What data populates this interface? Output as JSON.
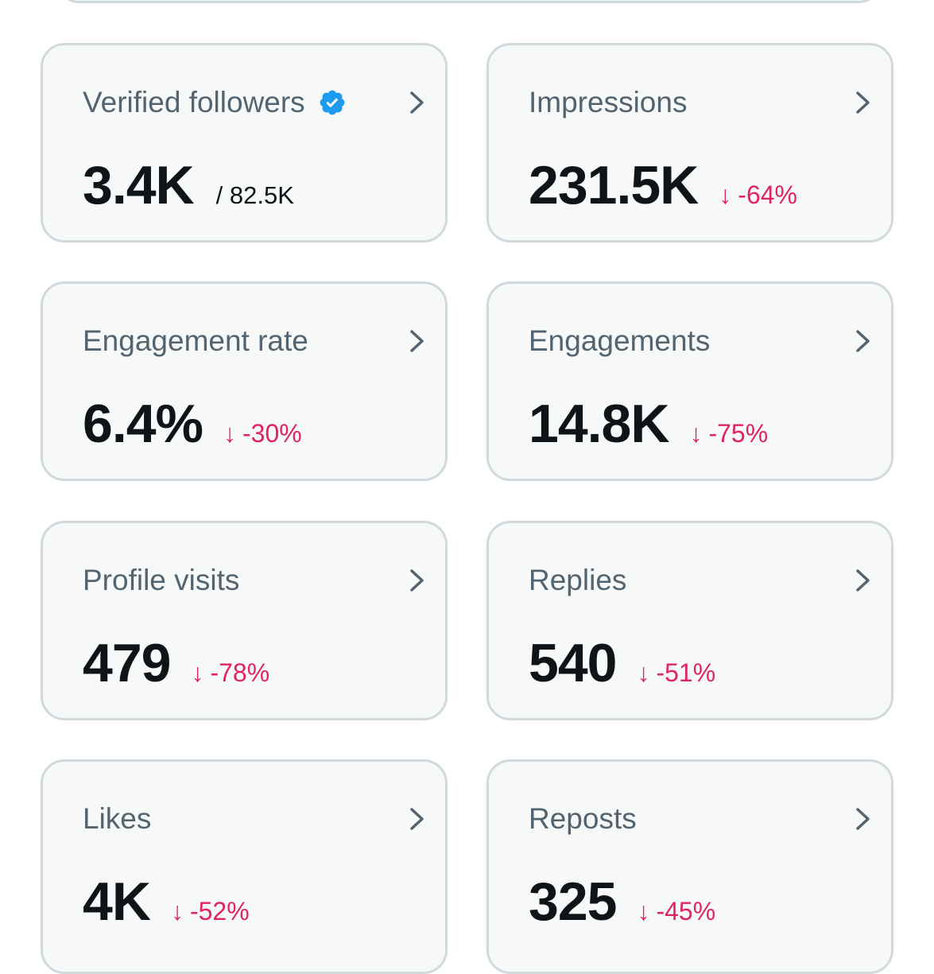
{
  "colors": {
    "card_bg": "#f7f9f9",
    "card_border": "#cfd9de",
    "title": "#536471",
    "value": "#0f1419",
    "negative": "#e0245e",
    "verified": "#1d9bf0"
  },
  "icons": {
    "chevron": "chevron-right-icon",
    "verified": "verified-badge-icon",
    "change": "arrow-down-icon"
  },
  "cards": [
    {
      "title": "Verified followers",
      "value": "3.4K",
      "sub": "/ 82.5K"
    },
    {
      "title": "Impressions",
      "value": "231.5K",
      "arrow": "↓",
      "change": "-64%"
    },
    {
      "title": "Engagement rate",
      "value": "6.4%",
      "arrow": "↓",
      "change": "-30%"
    },
    {
      "title": "Engagements",
      "value": "14.8K",
      "arrow": "↓",
      "change": "-75%"
    },
    {
      "title": "Profile visits",
      "value": "479",
      "arrow": "↓",
      "change": "-78%"
    },
    {
      "title": "Replies",
      "value": "540",
      "arrow": "↓",
      "change": "-51%"
    },
    {
      "title": "Likes",
      "value": "4K",
      "arrow": "↓",
      "change": "-52%"
    },
    {
      "title": "Reposts",
      "value": "325",
      "arrow": "↓",
      "change": "-45%"
    }
  ]
}
